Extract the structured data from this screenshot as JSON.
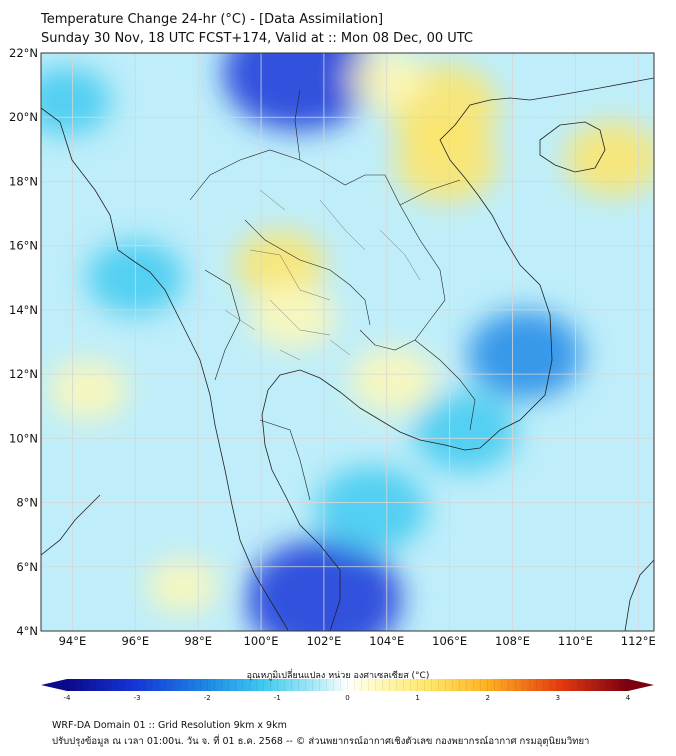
{
  "header": {
    "title_line1": "Temperature Change 24-hr (°C) - [Data Assimilation]",
    "title_line2": "Sunday 30 Nov, 18 UTC FCST+174, Valid at :: Mon 08 Dec, 00 UTC"
  },
  "map": {
    "lat_range": [
      4,
      22
    ],
    "lon_range": [
      93,
      112.5
    ],
    "lat_ticks": [
      "22°N",
      "20°N",
      "18°N",
      "16°N",
      "14°N",
      "12°N",
      "10°N",
      "8°N",
      "6°N",
      "4°N"
    ],
    "lon_ticks": [
      "94°E",
      "96°E",
      "98°E",
      "100°E",
      "102°E",
      "104°E",
      "106°E",
      "108°E",
      "110°E",
      "112°E"
    ],
    "field_blobs": [
      {
        "lon": 101.2,
        "lat": 21.4,
        "value": -2.6
      },
      {
        "lon": 102.0,
        "lat": 5.0,
        "value": -2.7
      },
      {
        "lon": 105.8,
        "lat": 20.3,
        "value": 1.5
      },
      {
        "lon": 105.9,
        "lat": 18.6,
        "value": 1.3
      },
      {
        "lon": 111.2,
        "lat": 18.7,
        "value": 1.1
      },
      {
        "lon": 100.6,
        "lat": 15.4,
        "value": 0.9
      },
      {
        "lon": 101.0,
        "lat": 13.8,
        "value": 0.8
      },
      {
        "lon": 104.2,
        "lat": 11.8,
        "value": 0.8
      },
      {
        "lon": 94.5,
        "lat": 11.5,
        "value": 0.6
      },
      {
        "lon": 104.0,
        "lat": 21.2,
        "value": 0.5
      },
      {
        "lon": 97.5,
        "lat": 5.4,
        "value": 0.4
      },
      {
        "lon": 108.4,
        "lat": 12.6,
        "value": -1.6
      },
      {
        "lon": 106.5,
        "lat": 10.2,
        "value": -1.3
      },
      {
        "lon": 103.5,
        "lat": 7.8,
        "value": -1.5
      },
      {
        "lon": 96.0,
        "lat": 15.0,
        "value": -1.1
      },
      {
        "lon": 93.8,
        "lat": 20.5,
        "value": -0.9
      }
    ]
  },
  "colorbar": {
    "label": "อุณหภูมิเปลี่ยนแปลง หน่วย องศาเซลเซียส (°C)",
    "min": -4,
    "max": 4,
    "ticks": [
      "-4",
      "-3",
      "-2",
      "-1",
      "0",
      "1",
      "2",
      "3",
      "4"
    ]
  },
  "footer": {
    "line1": "WRF-DA Domain 01 :: Grid Resolution 9km x 9km",
    "line2": "ปรับปรุงข้อมูล ณ เวลา 01:00น. วัน จ. ที่ 01 ธ.ค. 2568 -- © ส่วนพยากรณ์อากาศเชิงตัวเลข กองพยากรณ์อากาศ กรมอุตุนิยมวิทยา"
  }
}
